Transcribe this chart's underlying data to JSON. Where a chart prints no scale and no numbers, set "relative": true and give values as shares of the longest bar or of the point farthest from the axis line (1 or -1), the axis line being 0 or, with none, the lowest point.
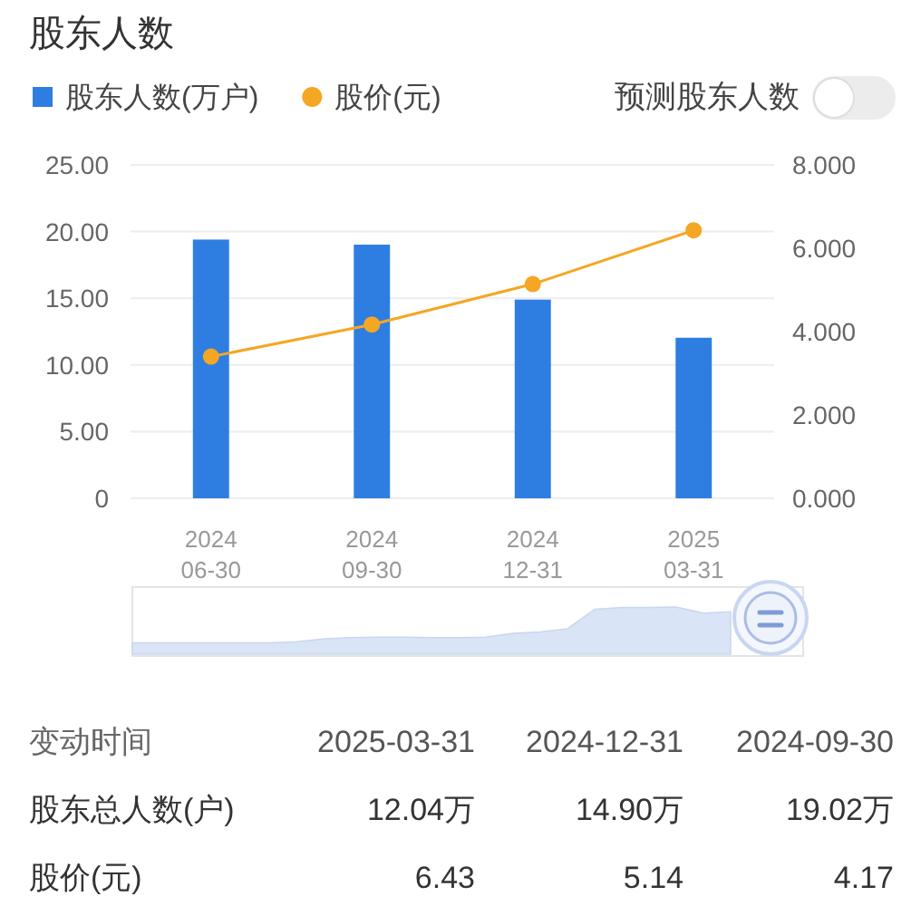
{
  "chart_data": [
    {
      "type": "bar",
      "title": "股东人数",
      "categories": [
        "2024\n06-30",
        "2024\n09-30",
        "2024\n12-31",
        "2025\n03-31"
      ],
      "series": [
        {
          "name": "股东人数(万户)",
          "type": "bar",
          "color": "#2e7ee2",
          "values": [
            19.4,
            19.02,
            14.9,
            12.04
          ]
        },
        {
          "name": "股价(元)",
          "type": "line",
          "axis": "y2",
          "color": "#f5a623",
          "values": [
            3.4,
            4.17,
            5.14,
            6.43
          ]
        }
      ],
      "ylim": [
        0,
        25
      ],
      "yticks": [
        0,
        {
          "value": 5,
          "label": "5.00"
        },
        {
          "value": 10,
          "label": "10.00"
        },
        {
          "value": 15,
          "label": "15.00"
        },
        {
          "value": 20,
          "label": "20.00"
        },
        {
          "value": 25,
          "label": "25.00"
        }
      ],
      "y2lim": [
        0,
        8
      ],
      "y2ticks": [
        {
          "value": 0,
          "label": "0.000"
        },
        {
          "value": 2,
          "label": "2.000"
        },
        {
          "value": 4,
          "label": "4.000"
        },
        {
          "value": 6,
          "label": "6.000"
        },
        {
          "value": 8,
          "label": "8.000"
        }
      ],
      "grid": "y",
      "legend": "top left",
      "marker": "circle",
      "line_style": "solid",
      "annotations": [
        "预测股东人数"
      ]
    },
    {
      "type": "area",
      "relative": true,
      "color": "#d9e4f6",
      "categories": [
        null,
        null,
        null,
        null,
        null,
        null,
        null,
        null,
        null,
        null,
        null,
        null,
        null,
        null,
        null,
        null,
        null,
        null,
        null,
        null,
        null,
        null,
        null
      ],
      "values": [
        0.24,
        0.24,
        0.24,
        0.24,
        0.24,
        0.24,
        0.26,
        0.32,
        0.35,
        0.36,
        0.36,
        0.35,
        0.35,
        0.36,
        0.44,
        0.47,
        0.54,
        0.95,
        0.99,
        0.99,
        1,
        0.87,
        0.9
      ]
    },
    {
      "type": "other",
      "annotations": [
        "变动时间",
        "2025-03-31",
        "2024-12-31",
        "2024-09-30",
        "股东总人数(户)",
        "12.04万",
        "14.90万",
        "19.02万",
        "股价(元)",
        "6.43",
        "5.14",
        "4.17"
      ]
    }
  ]
}
